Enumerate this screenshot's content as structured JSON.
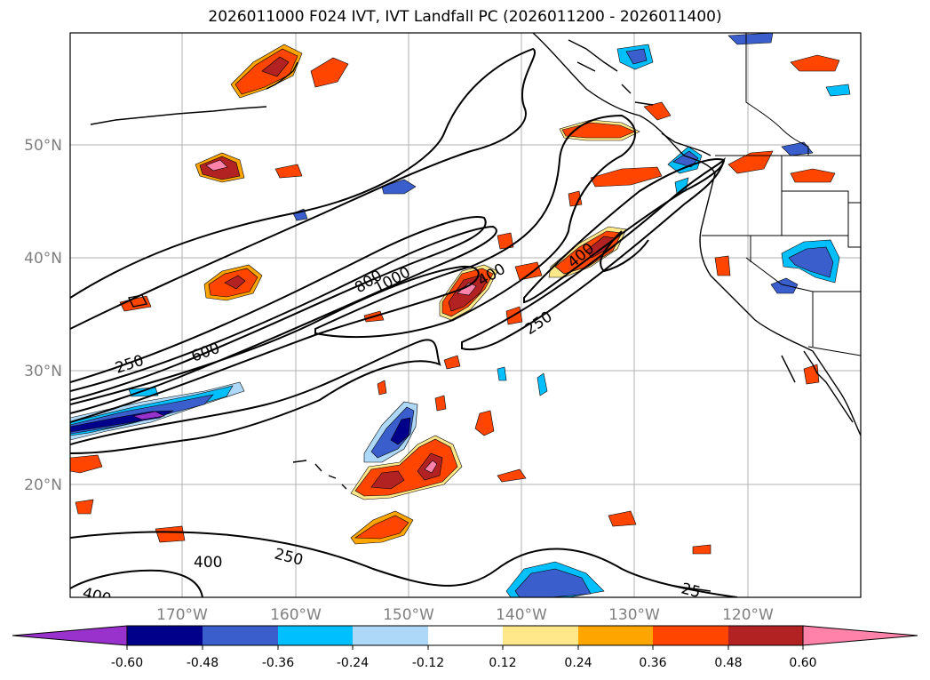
{
  "title": "2026011000 F024 IVT, IVT Landfall PC (2026011200 - 2026011400)",
  "map": {
    "lat_labels": [
      "50°N",
      "40°N",
      "30°N",
      "20°N"
    ],
    "lon_labels": [
      "170°W",
      "160°W",
      "150°W",
      "140°W",
      "130°W",
      "120°W"
    ],
    "lon_range": [
      -180,
      -110
    ],
    "lat_range": [
      10,
      60
    ],
    "ivt_contour_labels": [
      "250",
      "600",
      "800",
      "1000",
      "400",
      "400",
      "250",
      "400",
      "250",
      "400",
      "25"
    ]
  },
  "colorbar": {
    "ticks": [
      "-0.60",
      "-0.48",
      "-0.36",
      "-0.24",
      "-0.12",
      "0.12",
      "0.24",
      "0.36",
      "0.48",
      "0.60"
    ],
    "colors": {
      "lt_-0.60": "#9932cc",
      "-0.60_-0.48": "#00008b",
      "-0.48_-0.36": "#3a5fcd",
      "-0.36_-0.24": "#00bfff",
      "-0.24_-0.12": "#add8f7",
      "-0.12_0.12": "#ffffff",
      "0.12_0.24": "#ffe88a",
      "0.24_0.36": "#ffa500",
      "0.36_0.48": "#ff4500",
      "0.48_0.60": "#b22222",
      "gt_0.60": "#ff82ab"
    }
  }
}
